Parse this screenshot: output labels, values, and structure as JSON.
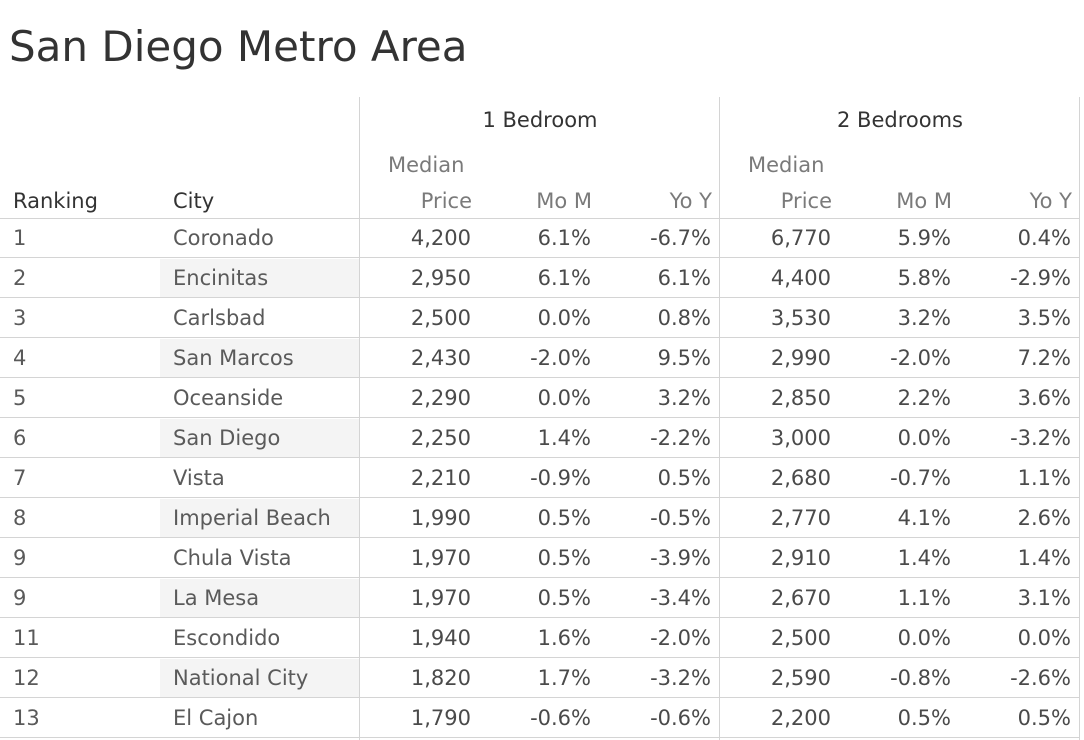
{
  "title": "San Diego Metro Area",
  "chart_data": {
    "type": "table",
    "title": "San Diego Metro Area",
    "column_groups": [
      "1 Bedroom",
      "2 Bedrooms"
    ],
    "columns": [
      "Ranking",
      "City",
      "Median Price",
      "Mo M",
      "Yo Y",
      "Median Price",
      "Mo M",
      "Yo Y"
    ],
    "headers": {
      "ranking": "Ranking",
      "city": "City",
      "median": "Median",
      "price": "Price",
      "mom": "Mo M",
      "yoy": "Yo Y"
    },
    "rows": [
      {
        "rank": "1",
        "city": "Coronado",
        "p1": "4,200",
        "m1": "6.1%",
        "y1": "-6.7%",
        "p2": "6,770",
        "m2": "5.9%",
        "y2": "0.4%"
      },
      {
        "rank": "2",
        "city": "Encinitas",
        "p1": "2,950",
        "m1": "6.1%",
        "y1": "6.1%",
        "p2": "4,400",
        "m2": "5.8%",
        "y2": "-2.9%"
      },
      {
        "rank": "3",
        "city": "Carlsbad",
        "p1": "2,500",
        "m1": "0.0%",
        "y1": "0.8%",
        "p2": "3,530",
        "m2": "3.2%",
        "y2": "3.5%"
      },
      {
        "rank": "4",
        "city": "San Marcos",
        "p1": "2,430",
        "m1": "-2.0%",
        "y1": "9.5%",
        "p2": "2,990",
        "m2": "-2.0%",
        "y2": "7.2%"
      },
      {
        "rank": "5",
        "city": "Oceanside",
        "p1": "2,290",
        "m1": "0.0%",
        "y1": "3.2%",
        "p2": "2,850",
        "m2": "2.2%",
        "y2": "3.6%"
      },
      {
        "rank": "6",
        "city": "San Diego",
        "p1": "2,250",
        "m1": "1.4%",
        "y1": "-2.2%",
        "p2": "3,000",
        "m2": "0.0%",
        "y2": "-3.2%"
      },
      {
        "rank": "7",
        "city": "Vista",
        "p1": "2,210",
        "m1": "-0.9%",
        "y1": "0.5%",
        "p2": "2,680",
        "m2": "-0.7%",
        "y2": "1.1%"
      },
      {
        "rank": "8",
        "city": "Imperial Beach",
        "p1": "1,990",
        "m1": "0.5%",
        "y1": "-0.5%",
        "p2": "2,770",
        "m2": "4.1%",
        "y2": "2.6%"
      },
      {
        "rank": "9",
        "city": "Chula Vista",
        "p1": "1,970",
        "m1": "0.5%",
        "y1": "-3.9%",
        "p2": "2,910",
        "m2": "1.4%",
        "y2": "1.4%"
      },
      {
        "rank": "9",
        "city": "La Mesa",
        "p1": "1,970",
        "m1": "0.5%",
        "y1": "-3.4%",
        "p2": "2,670",
        "m2": "1.1%",
        "y2": "3.1%"
      },
      {
        "rank": "11",
        "city": "Escondido",
        "p1": "1,940",
        "m1": "1.6%",
        "y1": "-2.0%",
        "p2": "2,500",
        "m2": "0.0%",
        "y2": "0.0%"
      },
      {
        "rank": "12",
        "city": "National City",
        "p1": "1,820",
        "m1": "1.7%",
        "y1": "-3.2%",
        "p2": "2,590",
        "m2": "-0.8%",
        "y2": "-2.6%"
      },
      {
        "rank": "13",
        "city": "El Cajon",
        "p1": "1,790",
        "m1": "-0.6%",
        "y1": "-0.6%",
        "p2": "2,200",
        "m2": "0.5%",
        "y2": "0.5%"
      }
    ]
  }
}
